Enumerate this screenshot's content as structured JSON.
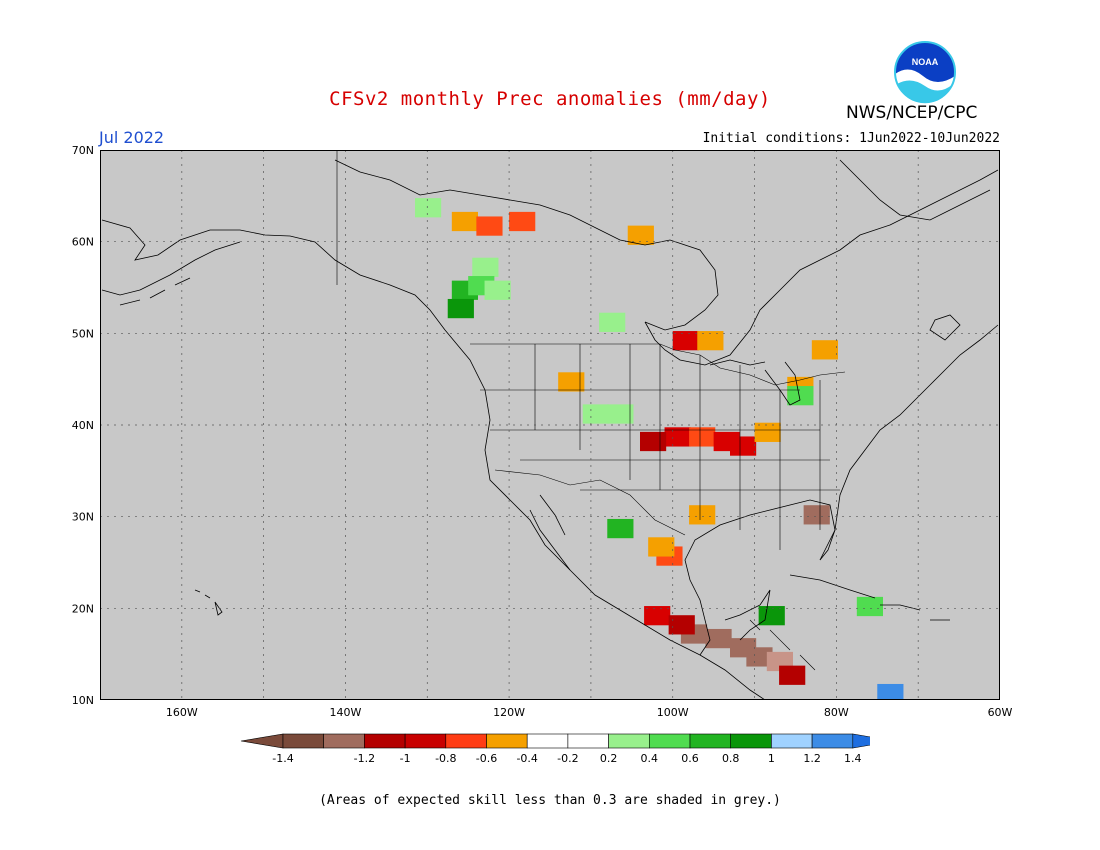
{
  "title": "CFSv2 monthly Prec anomalies (mm/day)",
  "organization": "NWS/NCEP/CPC",
  "logo_text": "NOAA",
  "valid_month": "Jul 2022",
  "initial_conditions": "Initial conditions: 1Jun2022-10Jun2022",
  "footnote": "(Areas of expected skill less than 0.3 are shaded in grey.)",
  "map": {
    "region": "North America",
    "projection": "lat-lon",
    "lon_range": [
      -170,
      -60
    ],
    "lat_range": [
      10,
      70
    ],
    "lat_labels": [
      "70N",
      "60N",
      "50N",
      "40N",
      "30N",
      "20N",
      "10N"
    ],
    "lon_labels": [
      "160W",
      "140W",
      "120W",
      "100W",
      "80W",
      "60W"
    ],
    "background_color": "#c8c8c8",
    "gridlines": "dotted"
  },
  "legend": {
    "tick_labels": [
      "-1.4",
      "-1.2",
      "-1",
      "-0.8",
      "-0.6",
      "-0.4",
      "-0.2",
      "0.2",
      "0.4",
      "0.6",
      "0.8",
      "1",
      "1.2",
      "1.4"
    ],
    "colors": [
      "#7a4a3a",
      "#a06c5e",
      "#c89488",
      "#b40000",
      "#d80000",
      "#ff4a14",
      "#f5a000",
      "#ffffff",
      "#98f08c",
      "#50dc50",
      "#22b422",
      "#0a960a",
      "#a0d2ff",
      "#3c8ce6",
      "#1e6ee0"
    ]
  },
  "anomaly_cells": [
    {
      "lon": -130.5,
      "lat": 64.0,
      "value": 0.3
    },
    {
      "lon": -123.5,
      "lat": 57.5,
      "value": 0.2
    },
    {
      "lon": -126.0,
      "lat": 55.0,
      "value": 0.7
    },
    {
      "lon": -126.5,
      "lat": 53.0,
      "value": 0.9
    },
    {
      "lon": -124.0,
      "lat": 55.5,
      "value": 0.5
    },
    {
      "lon": -122.0,
      "lat": 55.0,
      "value": 0.3
    },
    {
      "lon": -126.0,
      "lat": 62.5,
      "value": -0.4
    },
    {
      "lon": -123.0,
      "lat": 62.0,
      "value": -0.5
    },
    {
      "lon": -119.0,
      "lat": 62.5,
      "value": -0.6
    },
    {
      "lon": -104.5,
      "lat": 61.0,
      "value": -0.3
    },
    {
      "lon": -99.0,
      "lat": 49.5,
      "value": -0.7
    },
    {
      "lon": -96.0,
      "lat": 49.5,
      "value": -0.4
    },
    {
      "lon": -82.0,
      "lat": 48.5,
      "value": -0.3
    },
    {
      "lon": -108.0,
      "lat": 51.5,
      "value": 0.3
    },
    {
      "lon": -100.0,
      "lat": 39.0,
      "value": -0.8
    },
    {
      "lon": -97.0,
      "lat": 39.0,
      "value": -0.6
    },
    {
      "lon": -94.0,
      "lat": 38.5,
      "value": -0.7
    },
    {
      "lon": -92.0,
      "lat": 38.0,
      "value": -0.8
    },
    {
      "lon": -103.0,
      "lat": 38.5,
      "value": -0.9
    },
    {
      "lon": -89.0,
      "lat": 39.5,
      "value": -0.3
    },
    {
      "lon": -110.0,
      "lat": 41.5,
      "value": 0.3
    },
    {
      "lon": -107.0,
      "lat": 41.5,
      "value": 0.2
    },
    {
      "lon": -85.0,
      "lat": 44.5,
      "value": -0.4
    },
    {
      "lon": -85.0,
      "lat": 43.5,
      "value": 0.4
    },
    {
      "lon": -113.0,
      "lat": 45.0,
      "value": -0.4
    },
    {
      "lon": -83.0,
      "lat": 30.5,
      "value": -1.3
    },
    {
      "lon": -101.0,
      "lat": 26.0,
      "value": -0.5
    },
    {
      "lon": -102.0,
      "lat": 27.0,
      "value": -0.3
    },
    {
      "lon": -107.0,
      "lat": 29.0,
      "value": 0.7
    },
    {
      "lon": -97.0,
      "lat": 30.5,
      "value": -0.4
    },
    {
      "lon": -98.0,
      "lat": 17.5,
      "value": -1.4
    },
    {
      "lon": -95.0,
      "lat": 17.0,
      "value": -1.4
    },
    {
      "lon": -92.0,
      "lat": 16.0,
      "value": -1.3
    },
    {
      "lon": -90.0,
      "lat": 15.0,
      "value": -1.4
    },
    {
      "lon": -87.5,
      "lat": 14.5,
      "value": -1.2
    },
    {
      "lon": -86.0,
      "lat": 13.0,
      "value": -0.9
    },
    {
      "lon": -102.5,
      "lat": 19.5,
      "value": -0.8
    },
    {
      "lon": -99.5,
      "lat": 18.5,
      "value": -0.9
    },
    {
      "lon": -88.5,
      "lat": 19.5,
      "value": 0.8
    },
    {
      "lon": -76.5,
      "lat": 20.5,
      "value": 0.5
    },
    {
      "lon": -74.0,
      "lat": 11.0,
      "value": 1.3
    }
  ]
}
